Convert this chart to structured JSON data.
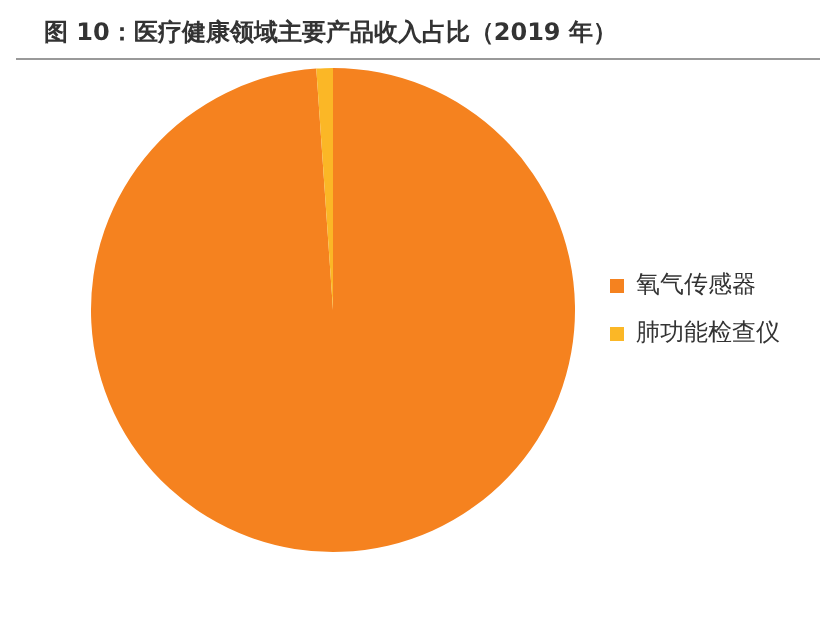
{
  "chart_data": {
    "type": "pie",
    "title": "图 10：医疗健康领域主要产品收入占比（2019 年）",
    "categories": [
      "氧气传感器",
      "肺功能检查仪"
    ],
    "values": [
      98.9,
      1.1
    ],
    "colors": [
      "#f5821f",
      "#fbb726"
    ],
    "legend": "right"
  }
}
